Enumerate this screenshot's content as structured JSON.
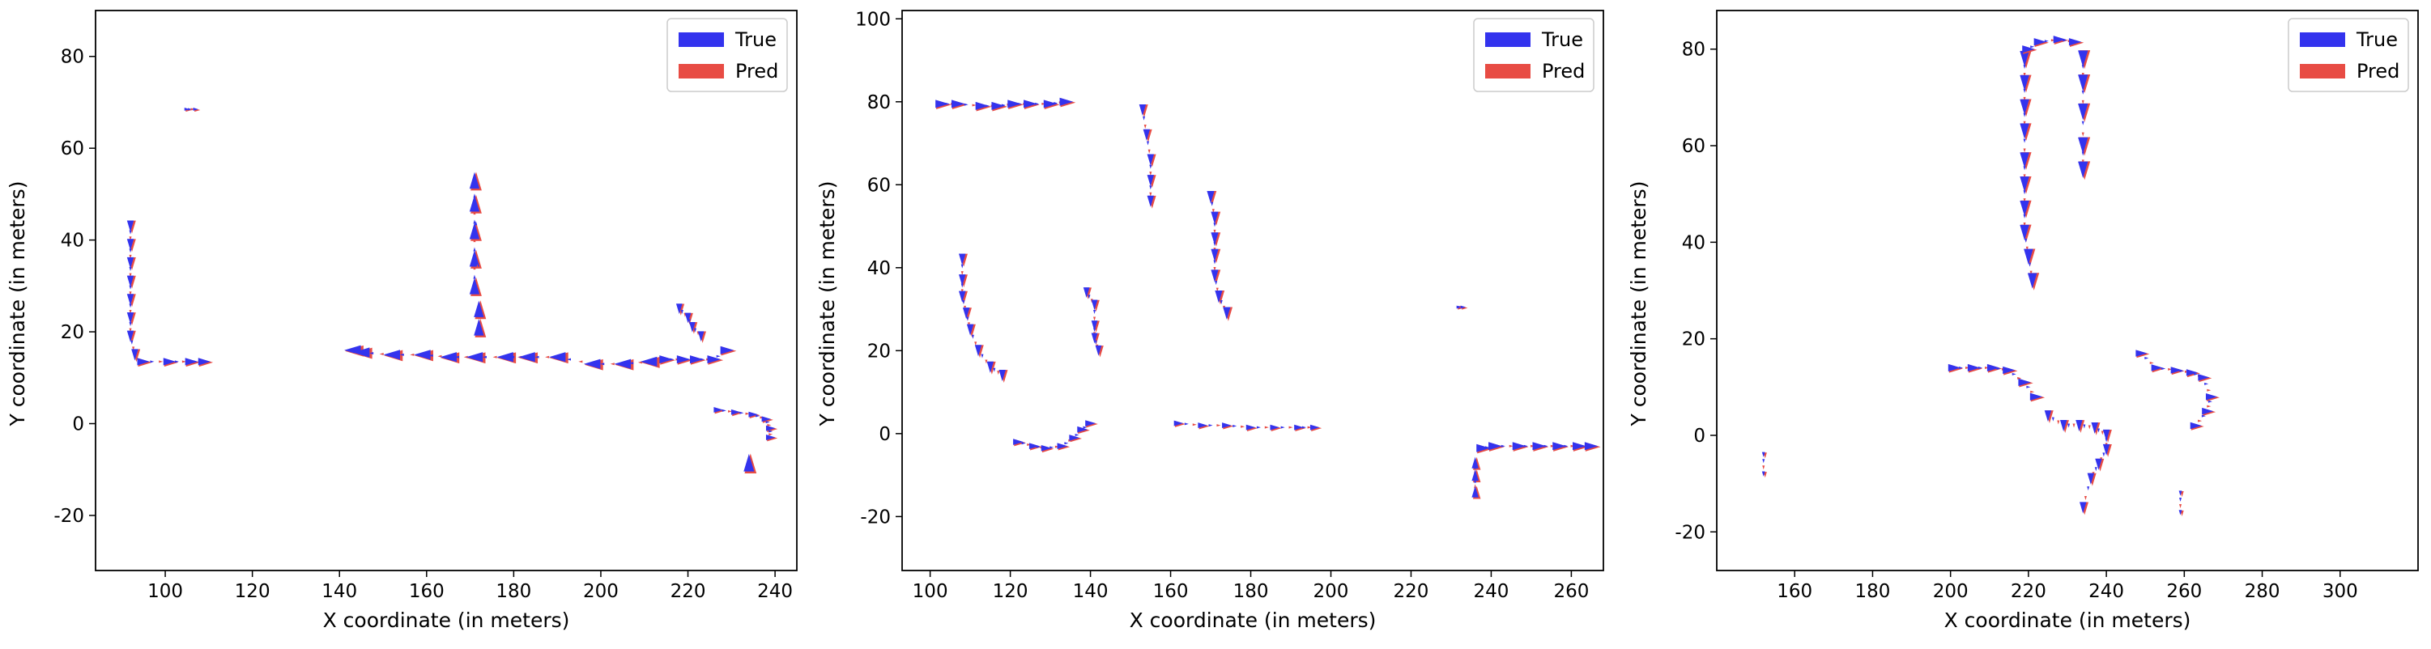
{
  "legend": {
    "true_label": "True",
    "pred_label": "Pred",
    "true_color": "#3333ee",
    "pred_color": "#e84c44",
    "placement": "upper right"
  },
  "chart_data": [
    {
      "type": "quiver",
      "xlabel": "X coordinate (in meters)",
      "ylabel": "Y coordinate (in meters)",
      "xlim": [
        84,
        245
      ],
      "ylim": [
        -32,
        90
      ],
      "xticks": [
        100,
        120,
        140,
        160,
        180,
        200,
        220,
        240
      ],
      "yticks": [
        -20,
        0,
        20,
        40,
        60,
        80
      ],
      "legend_placement": "top-right",
      "tracks": [
        {
          "x": [
            92,
            92,
            92,
            92,
            92,
            92,
            92,
            93
          ],
          "y": [
            43,
            39,
            35,
            31,
            27,
            23,
            19,
            15
          ],
          "dx": 0,
          "dy": -1,
          "size": 1.1
        },
        {
          "x": [
            95,
            101,
            106,
            109
          ],
          "y": [
            13.5,
            13.5,
            13.5,
            13.5
          ],
          "dx": 1,
          "dy": 0,
          "size": 1.2
        },
        {
          "x": [
            105,
            107
          ],
          "y": [
            68.5,
            68.5
          ],
          "dx": 1,
          "dy": 0,
          "size": 0.5
        },
        {
          "x": [
            171,
            171,
            171,
            171,
            171,
            172,
            172
          ],
          "y": [
            30,
            36,
            42,
            48,
            53,
            25,
            21
          ],
          "dx": 0,
          "dy": 1,
          "size": 1.6
        },
        {
          "x": [
            143,
            145,
            152,
            159,
            165,
            171,
            178,
            183,
            190,
            198,
            205,
            211
          ],
          "y": [
            16,
            15.5,
            15,
            15,
            14.5,
            14.5,
            14.5,
            14.5,
            14.5,
            13,
            13,
            13.5
          ],
          "dx": -1,
          "dy": 0,
          "size": 1.6
        },
        {
          "x": [
            215,
            219,
            222,
            226,
            229
          ],
          "y": [
            14,
            14,
            14,
            14,
            16
          ],
          "dx": 1,
          "dy": 0,
          "size": 1.3
        },
        {
          "x": [
            218,
            220,
            221,
            223
          ],
          "y": [
            25,
            23,
            21,
            19
          ],
          "dx": 0,
          "dy": -1,
          "size": 1.0
        },
        {
          "x": [
            227,
            231,
            235,
            238,
            239,
            239
          ],
          "y": [
            3,
            2.5,
            2,
            1,
            -1,
            -3
          ],
          "dx": 1,
          "dy": 0,
          "size": 0.9
        },
        {
          "x": [
            234
          ],
          "y": [
            -8.5
          ],
          "dx": 0,
          "dy": 1,
          "size": 1.7
        }
      ]
    },
    {
      "type": "quiver",
      "xlabel": "X coordinate (in meters)",
      "ylabel": "Y coordinate (in meters)",
      "xlim": [
        93,
        268
      ],
      "ylim": [
        -33,
        102
      ],
      "xticks": [
        100,
        120,
        140,
        160,
        180,
        200,
        220,
        240,
        260
      ],
      "yticks": [
        -20,
        0,
        20,
        40,
        60,
        80,
        100
      ],
      "legend_placement": "top-right",
      "tracks": [
        {
          "x": [
            103,
            107,
            113,
            117,
            121,
            125,
            130,
            134
          ],
          "y": [
            79.5,
            79.5,
            79,
            79,
            79.5,
            79.5,
            79.5,
            80
          ],
          "dx": 1,
          "dy": 0,
          "size": 1.3
        },
        {
          "x": [
            153,
            154,
            155,
            155,
            155
          ],
          "y": [
            78,
            72,
            66,
            61,
            56
          ],
          "dx": 0,
          "dy": -1,
          "size": 1.1
        },
        {
          "x": [
            170,
            171,
            171,
            171,
            171,
            172,
            174
          ],
          "y": [
            57,
            52,
            47,
            43,
            38,
            33,
            29
          ],
          "dx": 0,
          "dy": -1,
          "size": 1.2
        },
        {
          "x": [
            108,
            108,
            108,
            109,
            110,
            112,
            115,
            118
          ],
          "y": [
            42,
            37,
            33,
            29,
            25,
            20,
            16,
            14
          ],
          "dx": 0,
          "dy": -1,
          "size": 1.1
        },
        {
          "x": [
            139,
            141,
            141,
            141,
            142
          ],
          "y": [
            34,
            31,
            26,
            23,
            20
          ],
          "dx": 0,
          "dy": -1,
          "size": 1.0
        },
        {
          "x": [
            122,
            126,
            129,
            133,
            136,
            138,
            140
          ],
          "y": [
            -2,
            -3,
            -3.5,
            -3,
            -1,
            1,
            2.5
          ],
          "dx": 1,
          "dy": 0,
          "size": 1.0
        },
        {
          "x": [
            162,
            168,
            174,
            180,
            186,
            192,
            196
          ],
          "y": [
            2.5,
            2,
            2,
            1.5,
            1.5,
            1.5,
            1.5
          ],
          "dx": 1,
          "dy": 0,
          "size": 0.9
        },
        {
          "x": [
            232,
            233
          ],
          "y": [
            30.5,
            30.5
          ],
          "dx": 1,
          "dy": 0,
          "size": 0.5
        },
        {
          "x": [
            238,
            241,
            247,
            252,
            257,
            262,
            265
          ],
          "y": [
            -3.5,
            -3,
            -3,
            -3,
            -3,
            -3,
            -3
          ],
          "dx": 1,
          "dy": 0,
          "size": 1.3
        },
        {
          "x": [
            236,
            236,
            236
          ],
          "y": [
            -7,
            -10,
            -14
          ],
          "dx": 0,
          "dy": 1,
          "size": 1.1
        }
      ]
    },
    {
      "type": "quiver",
      "xlabel": "X coordinate (in meters)",
      "ylabel": "Y coordinate (in meters)",
      "xlim": [
        140,
        320
      ],
      "ylim": [
        -28,
        88
      ],
      "xticks": [
        160,
        180,
        200,
        220,
        240,
        260,
        280,
        300
      ],
      "yticks": [
        -20,
        0,
        20,
        40,
        60,
        80
      ],
      "legend_placement": "top-right",
      "tracks": [
        {
          "x": [
            219,
            219,
            219,
            219,
            219,
            219,
            219,
            219,
            220,
            221
          ],
          "y": [
            78,
            73,
            68,
            63,
            57,
            52,
            47,
            42,
            37,
            32
          ],
          "dx": 0,
          "dy": -1,
          "size": 1.5
        },
        {
          "x": [
            220,
            223,
            228,
            232
          ],
          "y": [
            80,
            81.5,
            82,
            81.5
          ],
          "dx": 1,
          "dy": 0,
          "size": 1.2
        },
        {
          "x": [
            234,
            234,
            234,
            234,
            234
          ],
          "y": [
            78,
            73,
            67,
            60,
            55
          ],
          "dx": 0,
          "dy": -1,
          "size": 1.6
        },
        {
          "x": [
            201,
            206,
            211,
            215,
            219,
            222
          ],
          "y": [
            14,
            14,
            14,
            13.5,
            11,
            8
          ],
          "dx": 1,
          "dy": 0,
          "size": 1.2
        },
        {
          "x": [
            225,
            229,
            233,
            237,
            240,
            240,
            238,
            236,
            234
          ],
          "y": [
            4,
            2,
            2,
            1.5,
            0,
            -3,
            -6,
            -9,
            -15
          ],
          "dx": 0,
          "dy": -1,
          "size": 1.1
        },
        {
          "x": [
            249,
            253,
            258,
            262,
            265,
            267,
            266,
            263
          ],
          "y": [
            17,
            14,
            13.5,
            13,
            12,
            8,
            5,
            2
          ],
          "dx": 1,
          "dy": 0,
          "size": 1.1
        },
        {
          "x": [
            152,
            152
          ],
          "y": [
            -4,
            -8
          ],
          "dx": 0,
          "dy": -1,
          "size": 0.5
        },
        {
          "x": [
            259,
            259
          ],
          "y": [
            -12,
            -16
          ],
          "dx": 0,
          "dy": -1,
          "size": 0.5
        }
      ]
    }
  ]
}
